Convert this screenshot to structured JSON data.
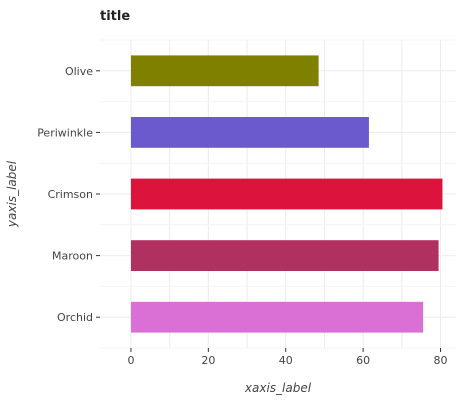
{
  "chart_data": {
    "type": "bar",
    "orientation": "horizontal",
    "title": "title",
    "xlabel": "xaxis_label",
    "ylabel": "yaxis_label",
    "categories": [
      "Orchid",
      "Maroon",
      "Crimson",
      "Periwinkle",
      "Olive"
    ],
    "values": [
      75.5,
      79.5,
      80.5,
      61.5,
      48.5
    ],
    "colors": [
      "#da70d6",
      "#b03060",
      "#dc143c",
      "#6a5acd",
      "#808000"
    ],
    "xlim": [
      -8,
      84
    ],
    "xticks": [
      0,
      20,
      40,
      60,
      80
    ],
    "grid": true,
    "legend": "none"
  }
}
